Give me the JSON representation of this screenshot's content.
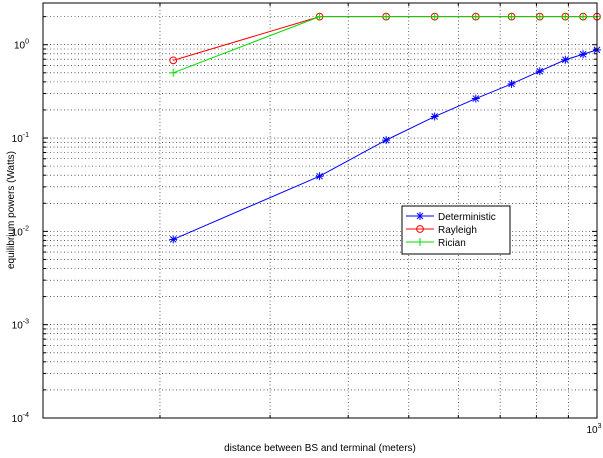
{
  "chart_data": {
    "type": "line",
    "title": "",
    "xlabel": "distance between BS and terminal (meters)",
    "ylabel": "equilibrium powers (Watts)",
    "x_scale": "log",
    "y_scale": "log",
    "xlim": [
      130,
      1000
    ],
    "ylim": [
      0.0001,
      2.8
    ],
    "x_tick_labels": [
      {
        "value": 1000,
        "base": "10",
        "exp": "3"
      }
    ],
    "y_tick_labels": [
      {
        "value": 0.0001,
        "base": "10",
        "exp": "-4"
      },
      {
        "value": 0.001,
        "base": "10",
        "exp": "-3"
      },
      {
        "value": 0.01,
        "base": "10",
        "exp": "-2"
      },
      {
        "value": 0.1,
        "base": "10",
        "exp": "-1"
      },
      {
        "value": 1,
        "base": "10",
        "exp": "0"
      }
    ],
    "grid": true,
    "legend_position": "center-right",
    "series": [
      {
        "name": "Deterministic",
        "color": "#0000ff",
        "marker": "asterisk",
        "x": [
          210,
          360,
          460,
          550,
          640,
          730,
          810,
          890,
          950,
          1000
        ],
        "y": [
          0.0082,
          0.039,
          0.095,
          0.17,
          0.265,
          0.38,
          0.52,
          0.69,
          0.79,
          0.88
        ]
      },
      {
        "name": "Rayleigh",
        "color": "#ff0000",
        "marker": "circle",
        "x": [
          210,
          360,
          460,
          550,
          640,
          730,
          810,
          890,
          950,
          1000
        ],
        "y": [
          0.68,
          2.0,
          2.0,
          2.0,
          2.0,
          2.0,
          2.0,
          2.0,
          2.0,
          2.0
        ]
      },
      {
        "name": "Rician",
        "color": "#00dd00",
        "marker": "plus",
        "x": [
          210,
          360,
          460,
          550,
          640,
          730,
          810,
          890,
          950,
          1000
        ],
        "y": [
          0.5,
          2.0,
          2.0,
          2.0,
          2.0,
          2.0,
          2.0,
          2.0,
          2.0,
          2.0
        ]
      }
    ]
  }
}
